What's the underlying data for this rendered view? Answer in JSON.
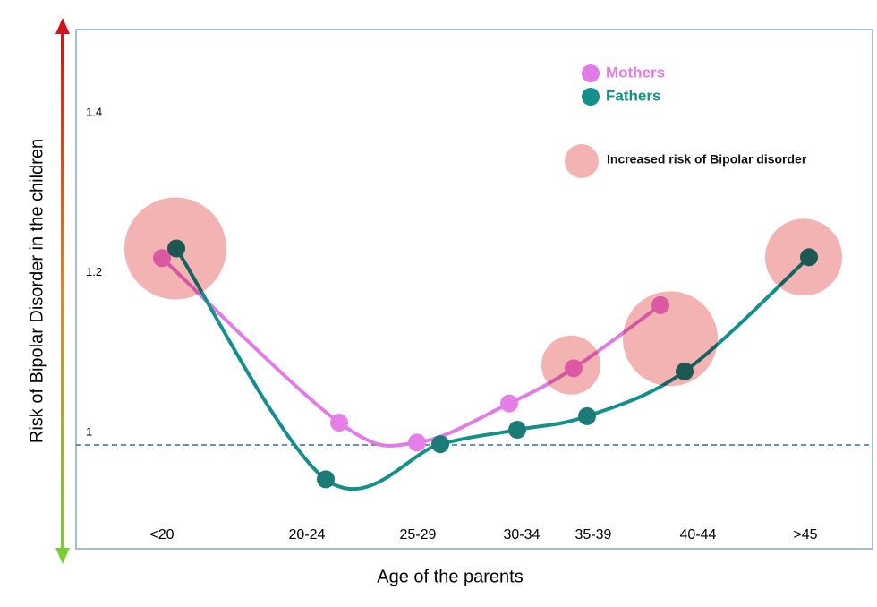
{
  "chart_data": {
    "type": "line",
    "y_axis_label": "Risk of Bipolar Disorder in the children",
    "x_axis_label": "Age of the parents",
    "categories": [
      "<20",
      "20-24",
      "25-29",
      "30-34",
      "35-39",
      "40-44",
      ">45"
    ],
    "ylim": [
      0.87,
      1.52
    ],
    "yticks": [
      1,
      1.2,
      1.4
    ],
    "reference_line": 1,
    "series": [
      {
        "name": "Mothers",
        "color": "#e07be8",
        "values": [
          1.234,
          1.028,
          1.003,
          1.052,
          1.096,
          1.175,
          null
        ]
      },
      {
        "name": "Fathers",
        "color": "#148f8a",
        "values": [
          1.246,
          0.957,
          1.001,
          1.019,
          1.036,
          1.092,
          1.235
        ]
      }
    ],
    "bubbles": {
      "name": "Increased risk of Bipolar disorder",
      "color": "#f0a0a0",
      "values": [
        1.246,
        null,
        null,
        null,
        1.1,
        1.133,
        1.235
      ],
      "sizes": [
        57,
        null,
        null,
        null,
        33,
        53,
        43
      ]
    }
  }
}
